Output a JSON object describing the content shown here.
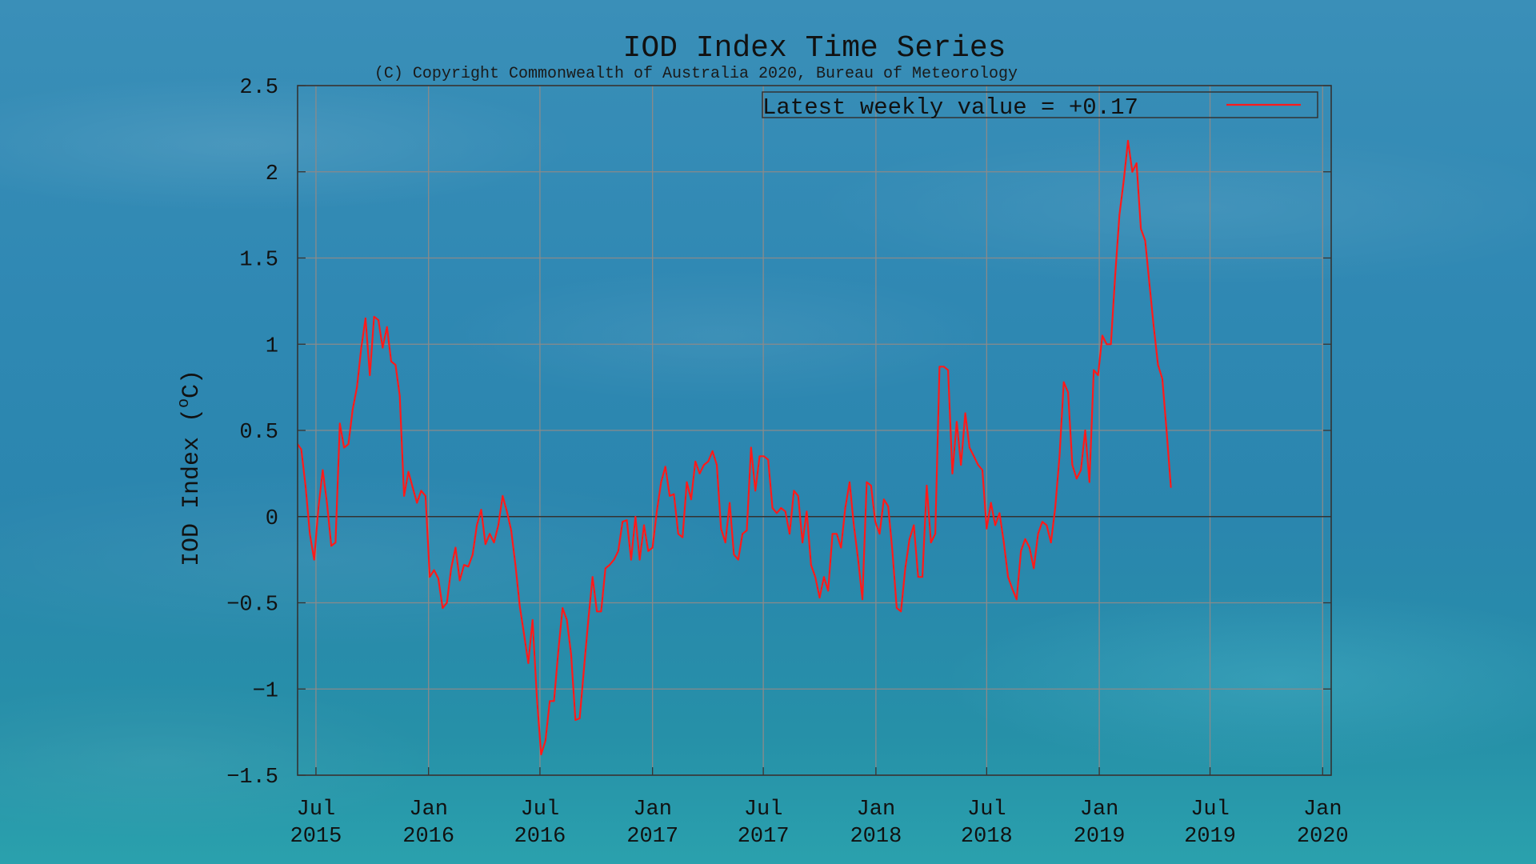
{
  "colors": {
    "series": "#ff1a1a",
    "grid": "#8a8a8a",
    "axis": "#333333",
    "zero_line": "#333333",
    "text": "#111111"
  },
  "chart_data": {
    "type": "line",
    "title": "IOD Index Time Series",
    "subtitle": "(C) Copyright Commonwealth of Australia 2020, Bureau of Meteorology",
    "xlabel": "",
    "ylabel": "IOD Index (°C)",
    "ylabel_prefix": "IOD Index (",
    "ylabel_degree": "o",
    "ylabel_suffix": "C)",
    "xlim": [
      "2015-06-01",
      "2020-01-15"
    ],
    "ylim": [
      -1.5,
      2.5
    ],
    "yticks": [
      -1.5,
      -1,
      -0.5,
      0,
      0.5,
      1,
      1.5,
      2,
      2.5
    ],
    "ytick_labels": [
      "−1.5",
      "−1",
      "−0.5",
      "0",
      "0.5",
      "1",
      "1.5",
      "2",
      "2.5"
    ],
    "xticks": [
      {
        "date": "2015-07-01",
        "line1": "Jul",
        "line2": "2015"
      },
      {
        "date": "2016-01-01",
        "line1": "Jan",
        "line2": "2016"
      },
      {
        "date": "2016-07-01",
        "line1": "Jul",
        "line2": "2016"
      },
      {
        "date": "2017-01-01",
        "line1": "Jan",
        "line2": "2017"
      },
      {
        "date": "2017-07-01",
        "line1": "Jul",
        "line2": "2017"
      },
      {
        "date": "2018-01-01",
        "line1": "Jan",
        "line2": "2018"
      },
      {
        "date": "2018-07-01",
        "line1": "Jul",
        "line2": "2018"
      },
      {
        "date": "2019-01-01",
        "line1": "Jan",
        "line2": "2019"
      },
      {
        "date": "2019-07-01",
        "line1": "Jul",
        "line2": "2019"
      },
      {
        "date": "2020-01-01",
        "line1": "Jan",
        "line2": "2020"
      }
    ],
    "grid": true,
    "zero_line": true,
    "legend": {
      "position": "top-right",
      "label": "Latest weekly value = +0.17"
    },
    "series": [
      {
        "name": "Latest weekly value = +0.17",
        "points": [
          [
            "2015-06-01",
            0.42
          ],
          [
            "2015-06-07",
            0.39
          ],
          [
            "2015-06-14",
            0.18
          ],
          [
            "2015-06-21",
            -0.1
          ],
          [
            "2015-06-28",
            -0.25
          ],
          [
            "2015-07-05",
            0.05
          ],
          [
            "2015-07-12",
            0.27
          ],
          [
            "2015-07-19",
            0.08
          ],
          [
            "2015-07-26",
            -0.17
          ],
          [
            "2015-08-02",
            -0.15
          ],
          [
            "2015-08-09",
            0.54
          ],
          [
            "2015-08-16",
            0.4
          ],
          [
            "2015-08-23",
            0.42
          ],
          [
            "2015-08-30",
            0.62
          ],
          [
            "2015-09-06",
            0.75
          ],
          [
            "2015-09-13",
            0.98
          ],
          [
            "2015-09-20",
            1.15
          ],
          [
            "2015-09-27",
            0.82
          ],
          [
            "2015-10-04",
            1.16
          ],
          [
            "2015-10-11",
            1.14
          ],
          [
            "2015-10-18",
            0.98
          ],
          [
            "2015-10-25",
            1.1
          ],
          [
            "2015-11-01",
            0.9
          ],
          [
            "2015-11-08",
            0.88
          ],
          [
            "2015-11-15",
            0.7
          ],
          [
            "2015-11-22",
            0.12
          ],
          [
            "2015-11-29",
            0.26
          ],
          [
            "2015-12-06",
            0.17
          ],
          [
            "2015-12-13",
            0.08
          ],
          [
            "2015-12-20",
            0.15
          ],
          [
            "2015-12-27",
            0.12
          ],
          [
            "2016-01-03",
            -0.35
          ],
          [
            "2016-01-10",
            -0.31
          ],
          [
            "2016-01-17",
            -0.36
          ],
          [
            "2016-01-24",
            -0.53
          ],
          [
            "2016-01-31",
            -0.5
          ],
          [
            "2016-02-07",
            -0.3
          ],
          [
            "2016-02-14",
            -0.18
          ],
          [
            "2016-02-21",
            -0.37
          ],
          [
            "2016-02-28",
            -0.28
          ],
          [
            "2016-03-06",
            -0.29
          ],
          [
            "2016-03-13",
            -0.22
          ],
          [
            "2016-03-20",
            -0.05
          ],
          [
            "2016-03-27",
            0.04
          ],
          [
            "2016-04-03",
            -0.16
          ],
          [
            "2016-04-10",
            -0.1
          ],
          [
            "2016-04-17",
            -0.15
          ],
          [
            "2016-04-24",
            -0.05
          ],
          [
            "2016-05-01",
            0.12
          ],
          [
            "2016-05-08",
            0.03
          ],
          [
            "2016-05-15",
            -0.08
          ],
          [
            "2016-05-22",
            -0.28
          ],
          [
            "2016-05-29",
            -0.52
          ],
          [
            "2016-06-05",
            -0.68
          ],
          [
            "2016-06-12",
            -0.85
          ],
          [
            "2016-06-19",
            -0.6
          ],
          [
            "2016-06-26",
            -1.05
          ],
          [
            "2016-07-03",
            -1.38
          ],
          [
            "2016-07-10",
            -1.3
          ],
          [
            "2016-07-17",
            -1.07
          ],
          [
            "2016-07-24",
            -1.07
          ],
          [
            "2016-07-31",
            -0.78
          ],
          [
            "2016-08-07",
            -0.53
          ],
          [
            "2016-08-14",
            -0.6
          ],
          [
            "2016-08-21",
            -0.8
          ],
          [
            "2016-08-28",
            -1.18
          ],
          [
            "2016-09-04",
            -1.17
          ],
          [
            "2016-09-11",
            -0.88
          ],
          [
            "2016-09-18",
            -0.6
          ],
          [
            "2016-09-25",
            -0.35
          ],
          [
            "2016-10-02",
            -0.55
          ],
          [
            "2016-10-09",
            -0.55
          ],
          [
            "2016-10-16",
            -0.3
          ],
          [
            "2016-10-23",
            -0.28
          ],
          [
            "2016-10-30",
            -0.25
          ],
          [
            "2016-11-06",
            -0.2
          ],
          [
            "2016-11-13",
            -0.03
          ],
          [
            "2016-11-20",
            -0.02
          ],
          [
            "2016-11-27",
            -0.25
          ],
          [
            "2016-12-04",
            0.0
          ],
          [
            "2016-12-11",
            -0.25
          ],
          [
            "2016-12-18",
            -0.05
          ],
          [
            "2016-12-25",
            -0.2
          ],
          [
            "2017-01-01",
            -0.18
          ],
          [
            "2017-01-08",
            0.03
          ],
          [
            "2017-01-15",
            0.2
          ],
          [
            "2017-01-22",
            0.29
          ],
          [
            "2017-01-29",
            0.12
          ],
          [
            "2017-02-05",
            0.13
          ],
          [
            "2017-02-12",
            -0.1
          ],
          [
            "2017-02-19",
            -0.12
          ],
          [
            "2017-02-26",
            0.2
          ],
          [
            "2017-03-05",
            0.1
          ],
          [
            "2017-03-12",
            0.32
          ],
          [
            "2017-03-19",
            0.25
          ],
          [
            "2017-03-26",
            0.3
          ],
          [
            "2017-04-02",
            0.32
          ],
          [
            "2017-04-09",
            0.38
          ],
          [
            "2017-04-16",
            0.3
          ],
          [
            "2017-04-23",
            -0.07
          ],
          [
            "2017-04-30",
            -0.15
          ],
          [
            "2017-05-07",
            0.08
          ],
          [
            "2017-05-14",
            -0.22
          ],
          [
            "2017-05-21",
            -0.25
          ],
          [
            "2017-05-28",
            -0.1
          ],
          [
            "2017-06-04",
            -0.08
          ],
          [
            "2017-06-11",
            0.4
          ],
          [
            "2017-06-18",
            0.15
          ],
          [
            "2017-06-25",
            0.35
          ],
          [
            "2017-07-02",
            0.35
          ],
          [
            "2017-07-09",
            0.33
          ],
          [
            "2017-07-16",
            0.05
          ],
          [
            "2017-07-23",
            0.02
          ],
          [
            "2017-07-30",
            0.05
          ],
          [
            "2017-08-06",
            0.03
          ],
          [
            "2017-08-13",
            -0.1
          ],
          [
            "2017-08-20",
            0.15
          ],
          [
            "2017-08-27",
            0.12
          ],
          [
            "2017-09-03",
            -0.15
          ],
          [
            "2017-09-10",
            0.03
          ],
          [
            "2017-09-17",
            -0.28
          ],
          [
            "2017-09-24",
            -0.35
          ],
          [
            "2017-10-01",
            -0.47
          ],
          [
            "2017-10-08",
            -0.35
          ],
          [
            "2017-10-15",
            -0.43
          ],
          [
            "2017-10-22",
            -0.1
          ],
          [
            "2017-10-29",
            -0.1
          ],
          [
            "2017-11-05",
            -0.18
          ],
          [
            "2017-11-12",
            0.05
          ],
          [
            "2017-11-19",
            0.2
          ],
          [
            "2017-11-26",
            -0.05
          ],
          [
            "2017-12-03",
            -0.25
          ],
          [
            "2017-12-10",
            -0.48
          ],
          [
            "2017-12-17",
            0.2
          ],
          [
            "2017-12-24",
            0.18
          ],
          [
            "2017-12-31",
            -0.03
          ],
          [
            "2018-01-07",
            -0.1
          ],
          [
            "2018-01-14",
            0.1
          ],
          [
            "2018-01-21",
            0.06
          ],
          [
            "2018-01-28",
            -0.2
          ],
          [
            "2018-02-04",
            -0.53
          ],
          [
            "2018-02-11",
            -0.55
          ],
          [
            "2018-02-18",
            -0.3
          ],
          [
            "2018-02-25",
            -0.13
          ],
          [
            "2018-03-04",
            -0.05
          ],
          [
            "2018-03-11",
            -0.35
          ],
          [
            "2018-03-18",
            -0.35
          ],
          [
            "2018-03-25",
            0.18
          ],
          [
            "2018-04-01",
            -0.15
          ],
          [
            "2018-04-08",
            -0.1
          ],
          [
            "2018-04-15",
            0.87
          ],
          [
            "2018-04-22",
            0.87
          ],
          [
            "2018-04-29",
            0.85
          ],
          [
            "2018-05-06",
            0.25
          ],
          [
            "2018-05-13",
            0.55
          ],
          [
            "2018-05-20",
            0.3
          ],
          [
            "2018-05-27",
            0.6
          ],
          [
            "2018-06-03",
            0.4
          ],
          [
            "2018-06-10",
            0.35
          ],
          [
            "2018-06-17",
            0.3
          ],
          [
            "2018-06-24",
            0.27
          ],
          [
            "2018-07-01",
            -0.07
          ],
          [
            "2018-07-08",
            0.08
          ],
          [
            "2018-07-15",
            -0.05
          ],
          [
            "2018-07-22",
            0.02
          ],
          [
            "2018-07-29",
            -0.15
          ],
          [
            "2018-08-05",
            -0.35
          ],
          [
            "2018-08-12",
            -0.42
          ],
          [
            "2018-08-19",
            -0.48
          ],
          [
            "2018-08-26",
            -0.2
          ],
          [
            "2018-09-02",
            -0.13
          ],
          [
            "2018-09-09",
            -0.18
          ],
          [
            "2018-09-16",
            -0.3
          ],
          [
            "2018-09-23",
            -0.1
          ],
          [
            "2018-09-30",
            -0.03
          ],
          [
            "2018-10-07",
            -0.05
          ],
          [
            "2018-10-14",
            -0.15
          ],
          [
            "2018-10-21",
            0.05
          ],
          [
            "2018-10-28",
            0.35
          ],
          [
            "2018-11-04",
            0.78
          ],
          [
            "2018-11-11",
            0.72
          ],
          [
            "2018-11-18",
            0.3
          ],
          [
            "2018-11-25",
            0.22
          ],
          [
            "2018-12-02",
            0.27
          ],
          [
            "2018-12-09",
            0.5
          ],
          [
            "2018-12-16",
            0.2
          ],
          [
            "2018-12-23",
            0.85
          ],
          [
            "2018-12-30",
            0.82
          ],
          [
            "2019-01-06",
            1.05
          ],
          [
            "2019-01-13",
            1.0
          ],
          [
            "2019-01-20",
            1.0
          ],
          [
            "2019-01-27",
            1.4
          ],
          [
            "2019-02-03",
            1.75
          ],
          [
            "2019-02-10",
            1.95
          ],
          [
            "2019-02-17",
            2.18
          ],
          [
            "2019-02-24",
            2.0
          ],
          [
            "2019-03-03",
            2.05
          ],
          [
            "2019-03-10",
            1.67
          ],
          [
            "2019-03-17",
            1.6
          ],
          [
            "2019-03-24",
            1.35
          ],
          [
            "2019-03-31",
            1.1
          ],
          [
            "2019-04-07",
            0.88
          ],
          [
            "2019-04-14",
            0.8
          ],
          [
            "2019-04-21",
            0.5
          ],
          [
            "2019-04-28",
            0.17
          ]
        ]
      }
    ]
  }
}
